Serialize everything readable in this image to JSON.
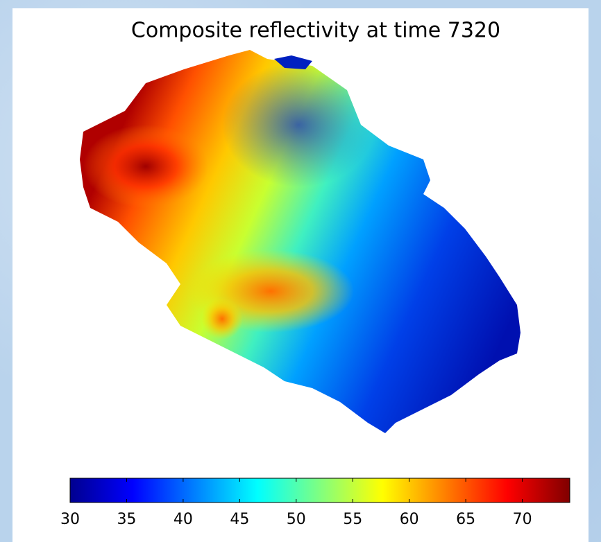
{
  "chart_data": {
    "type": "heatmap",
    "title": "Composite reflectivity at time 7320",
    "colormap": "jet",
    "clim": [
      30,
      74.2
    ],
    "cticks": [
      30,
      35,
      40,
      45,
      50,
      55,
      60,
      65,
      70
    ]
  }
}
